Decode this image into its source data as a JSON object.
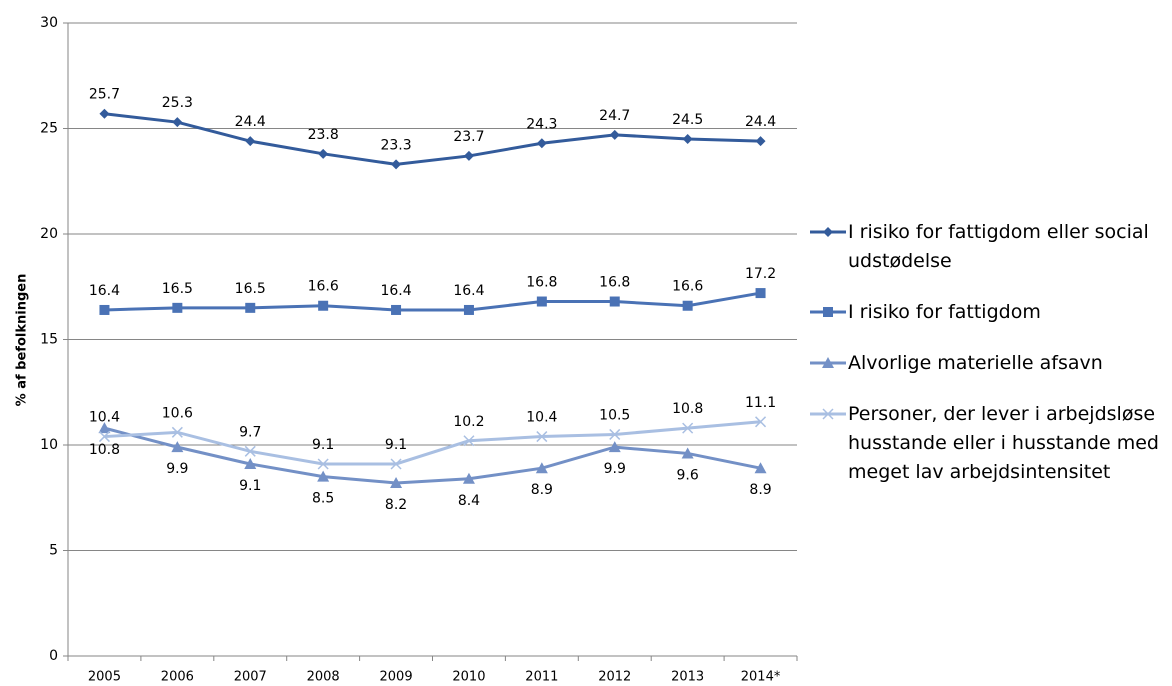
{
  "chart_data": {
    "type": "line",
    "y_label": "% af befolkningen",
    "categories": [
      "2005",
      "2006",
      "2007",
      "2008",
      "2009",
      "2010",
      "2011",
      "2012",
      "2013",
      "2014*"
    ],
    "series": [
      {
        "name": "I risiko for fattigdom eller social udstødelse",
        "color": "#335b9b",
        "marker": "diamond",
        "label_position": "above",
        "values": [
          25.7,
          25.3,
          24.4,
          23.8,
          23.3,
          23.7,
          24.3,
          24.7,
          24.5,
          24.4
        ]
      },
      {
        "name": "I risiko for fattigdom",
        "color": "#4a72b5",
        "marker": "square",
        "label_position": "above",
        "values": [
          16.4,
          16.5,
          16.5,
          16.6,
          16.4,
          16.4,
          16.8,
          16.8,
          16.6,
          17.2
        ]
      },
      {
        "name": "Alvorlige materielle afsavn",
        "color": "#7390c6",
        "marker": "triangle",
        "label_position": "below",
        "values": [
          10.8,
          9.9,
          9.1,
          8.5,
          8.2,
          8.4,
          8.9,
          9.9,
          9.6,
          8.9
        ]
      },
      {
        "name": "Personer, der lever i arbejdsløse husstande eller i husstande med meget lav arbejdsintensitet",
        "color": "#a9bfe2",
        "marker": "x",
        "label_position": "above",
        "values": [
          10.4,
          10.6,
          9.7,
          9.1,
          9.1,
          10.2,
          10.4,
          10.5,
          10.8,
          11.1
        ]
      }
    ],
    "ylim": [
      0,
      30
    ],
    "yticks": [
      0,
      5,
      10,
      15,
      20,
      25,
      30
    ],
    "grid": true,
    "legend": "right"
  }
}
